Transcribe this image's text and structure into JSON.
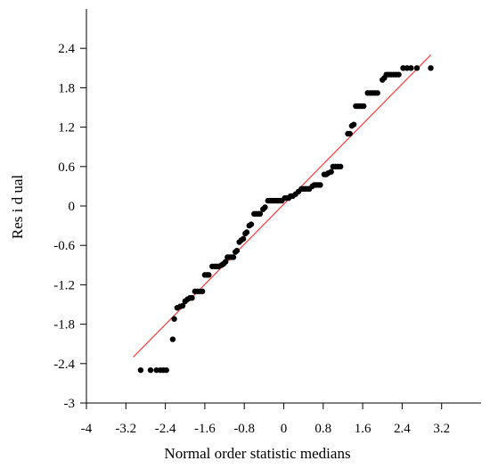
{
  "chart_data": {
    "type": "scatter",
    "title": "",
    "xlabel": "Normal order statistic medians",
    "ylabel": "Res i d ual",
    "xlim": [
      -4,
      4
    ],
    "ylim": [
      -3,
      3
    ],
    "xticks": [
      -4,
      -3.2,
      -2.4,
      -1.6,
      -0.8,
      0,
      0.8,
      1.6,
      2.4,
      3.2
    ],
    "xtick_labels": [
      "-4",
      "-3.2",
      "-2.4",
      "-1.6",
      "-0.8",
      "0",
      "0.8",
      "1.6",
      "2.4",
      "3.2"
    ],
    "yticks": [
      -3,
      -2.4,
      -1.8,
      -1.2,
      -0.6,
      0,
      0.6,
      1.2,
      1.8,
      2.4
    ],
    "ytick_labels": [
      "-3",
      "-2.4",
      "-1.8",
      "-1.2",
      "-0.6",
      "0",
      "0.6",
      "1.2",
      "1.8",
      "2.4"
    ],
    "grid": false,
    "marker_color": "#000000",
    "fit_line_color": "#ff3b3b",
    "fit_line": {
      "x": [
        -3.05,
        2.98
      ],
      "y": [
        -2.3,
        2.3
      ]
    },
    "points": [
      [
        -2.9,
        -2.5
      ],
      [
        -2.7,
        -2.5
      ],
      [
        -2.58,
        -2.5
      ],
      [
        -2.5,
        -2.5
      ],
      [
        -2.44,
        -2.5
      ],
      [
        -2.38,
        -2.5
      ],
      [
        -2.25,
        -2.03
      ],
      [
        -2.22,
        -1.72
      ],
      [
        -2.16,
        -1.55
      ],
      [
        -2.1,
        -1.53
      ],
      [
        -2.05,
        -1.52
      ],
      [
        -2.0,
        -1.45
      ],
      [
        -1.95,
        -1.42
      ],
      [
        -1.9,
        -1.4
      ],
      [
        -1.86,
        -1.4
      ],
      [
        -1.8,
        -1.3
      ],
      [
        -1.75,
        -1.3
      ],
      [
        -1.7,
        -1.3
      ],
      [
        -1.65,
        -1.3
      ],
      [
        -1.6,
        -1.05
      ],
      [
        -1.56,
        -1.05
      ],
      [
        -1.52,
        -1.05
      ],
      [
        -1.45,
        -0.92
      ],
      [
        -1.4,
        -0.92
      ],
      [
        -1.36,
        -0.92
      ],
      [
        -1.32,
        -0.92
      ],
      [
        -1.26,
        -0.9
      ],
      [
        -1.22,
        -0.88
      ],
      [
        -1.18,
        -0.85
      ],
      [
        -1.14,
        -0.78
      ],
      [
        -1.1,
        -0.78
      ],
      [
        -1.06,
        -0.78
      ],
      [
        -1.02,
        -0.78
      ],
      [
        -0.98,
        -0.7
      ],
      [
        -0.95,
        -0.68
      ],
      [
        -0.9,
        -0.55
      ],
      [
        -0.86,
        -0.52
      ],
      [
        -0.82,
        -0.5
      ],
      [
        -0.78,
        -0.42
      ],
      [
        -0.75,
        -0.4
      ],
      [
        -0.7,
        -0.3
      ],
      [
        -0.66,
        -0.28
      ],
      [
        -0.6,
        -0.12
      ],
      [
        -0.56,
        -0.12
      ],
      [
        -0.52,
        -0.12
      ],
      [
        -0.48,
        -0.12
      ],
      [
        -0.42,
        -0.05
      ],
      [
        -0.38,
        -0.02
      ],
      [
        -0.32,
        0.08
      ],
      [
        -0.28,
        0.08
      ],
      [
        -0.24,
        0.08
      ],
      [
        -0.2,
        0.08
      ],
      [
        -0.16,
        0.08
      ],
      [
        -0.12,
        0.08
      ],
      [
        -0.08,
        0.08
      ],
      [
        -0.04,
        0.08
      ],
      [
        0.02,
        0.12
      ],
      [
        0.06,
        0.12
      ],
      [
        0.1,
        0.12
      ],
      [
        0.14,
        0.15
      ],
      [
        0.18,
        0.15
      ],
      [
        0.24,
        0.18
      ],
      [
        0.3,
        0.22
      ],
      [
        0.36,
        0.26
      ],
      [
        0.4,
        0.26
      ],
      [
        0.44,
        0.26
      ],
      [
        0.48,
        0.26
      ],
      [
        0.52,
        0.26
      ],
      [
        0.58,
        0.3
      ],
      [
        0.62,
        0.32
      ],
      [
        0.66,
        0.32
      ],
      [
        0.7,
        0.32
      ],
      [
        0.74,
        0.32
      ],
      [
        0.82,
        0.48
      ],
      [
        0.86,
        0.48
      ],
      [
        0.9,
        0.5
      ],
      [
        0.96,
        0.52
      ],
      [
        1.0,
        0.6
      ],
      [
        1.05,
        0.6
      ],
      [
        1.1,
        0.6
      ],
      [
        1.15,
        0.6
      ],
      [
        1.3,
        1.1
      ],
      [
        1.34,
        1.1
      ],
      [
        1.38,
        1.22
      ],
      [
        1.42,
        1.24
      ],
      [
        1.46,
        1.52
      ],
      [
        1.5,
        1.52
      ],
      [
        1.54,
        1.52
      ],
      [
        1.58,
        1.52
      ],
      [
        1.62,
        1.52
      ],
      [
        1.7,
        1.72
      ],
      [
        1.75,
        1.72
      ],
      [
        1.8,
        1.72
      ],
      [
        1.85,
        1.72
      ],
      [
        1.9,
        1.72
      ],
      [
        2.0,
        1.92
      ],
      [
        2.04,
        1.95
      ],
      [
        2.08,
        2.0
      ],
      [
        2.13,
        2.0
      ],
      [
        2.18,
        2.0
      ],
      [
        2.23,
        2.0
      ],
      [
        2.28,
        2.0
      ],
      [
        2.33,
        2.0
      ],
      [
        2.42,
        2.1
      ],
      [
        2.5,
        2.1
      ],
      [
        2.58,
        2.1
      ],
      [
        2.7,
        2.1
      ],
      [
        2.98,
        2.1
      ]
    ]
  }
}
